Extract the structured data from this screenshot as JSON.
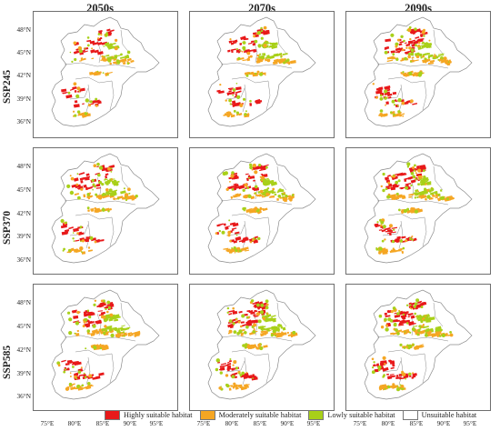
{
  "columns": [
    "2050s",
    "2070s",
    "2090s"
  ],
  "rows": [
    "SSP245",
    "SSP370",
    "SSP585"
  ],
  "lat_labels": [
    "48°N",
    "45°N",
    "42°N",
    "39°N",
    "36°N"
  ],
  "lon_labels": [
    "75°E",
    "80°E",
    "85°E",
    "90°E",
    "95°E"
  ],
  "legend": [
    {
      "label": "Highly suitable habitat",
      "color": "#e8191a"
    },
    {
      "label": "Moderately suitable habitat",
      "color": "#f5a623"
    },
    {
      "label": "Lowly suitable habitat",
      "color": "#a8d019"
    },
    {
      "label": "Unsuitable habitat",
      "color": "#ffffff"
    }
  ],
  "colors": {
    "high": "#e8191a",
    "moderate": "#f5a623",
    "low": "#a8d019",
    "boundary": "#8a8a8a"
  }
}
